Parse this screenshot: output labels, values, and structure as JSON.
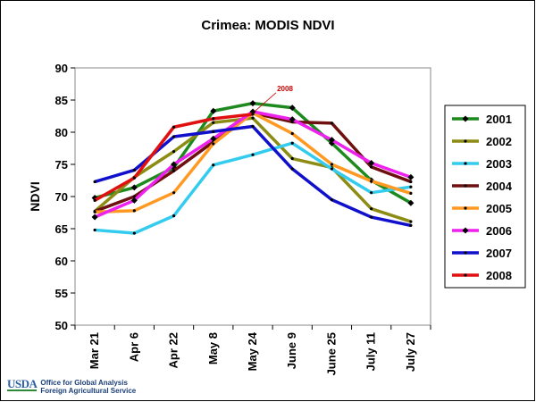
{
  "chart_data": {
    "type": "line",
    "title": "Crimea:  MODIS NDVI",
    "xlabel": "",
    "ylabel": "NDVI",
    "categories": [
      "Mar 21",
      "Apr 6",
      "Apr 22",
      "May 8",
      "May 24",
      "June 9",
      "June 25",
      "July 11",
      "July 27"
    ],
    "ylim": [
      50,
      90
    ],
    "yticks": [
      50,
      55,
      60,
      65,
      70,
      75,
      80,
      85,
      90
    ],
    "grid": false,
    "legend_position": "right",
    "annotation": "2008",
    "series": [
      {
        "name": "2001",
        "color": "#1e8a1e",
        "marker": "diamond",
        "values": [
          69.8,
          71.4,
          74.5,
          83.3,
          84.5,
          83.8,
          78.3,
          72.5,
          69.0
        ]
      },
      {
        "name": "2002",
        "color": "#8c8c14",
        "marker": "dot",
        "values": [
          67.7,
          73.0,
          77.0,
          81.5,
          82.2,
          75.9,
          74.5,
          68.1,
          66.1
        ]
      },
      {
        "name": "2003",
        "color": "#33ccee",
        "marker": "dot",
        "values": [
          64.8,
          64.3,
          67.0,
          74.9,
          76.5,
          78.3,
          74.3,
          70.6,
          71.5
        ]
      },
      {
        "name": "2004",
        "color": "#6e1010",
        "marker": "dot",
        "values": [
          67.7,
          70.0,
          74.0,
          78.5,
          83.0,
          81.6,
          81.4,
          74.6,
          72.3
        ]
      },
      {
        "name": "2005",
        "color": "#ff9922",
        "marker": "dot",
        "values": [
          67.6,
          67.8,
          70.6,
          78.2,
          83.0,
          79.8,
          75.0,
          72.4,
          70.5
        ]
      },
      {
        "name": "2006",
        "color": "#ee22ee",
        "marker": "diamond",
        "values": [
          66.8,
          69.4,
          75.0,
          79.0,
          83.2,
          82.0,
          78.8,
          75.2,
          73.0
        ]
      },
      {
        "name": "2007",
        "color": "#1010cc",
        "marker": "dot",
        "values": [
          72.3,
          74.1,
          79.3,
          80.1,
          80.9,
          74.3,
          69.5,
          66.8,
          65.5
        ]
      },
      {
        "name": "2008",
        "color": "#e01010",
        "marker": "dot",
        "values": [
          69.4,
          72.9,
          80.8,
          82.1,
          82.8,
          null,
          null,
          null,
          null
        ]
      }
    ]
  },
  "footer": {
    "logo_text": "USDA",
    "line1": "Office for Global Analysis",
    "line2": "Foreign Agricultural Service"
  }
}
